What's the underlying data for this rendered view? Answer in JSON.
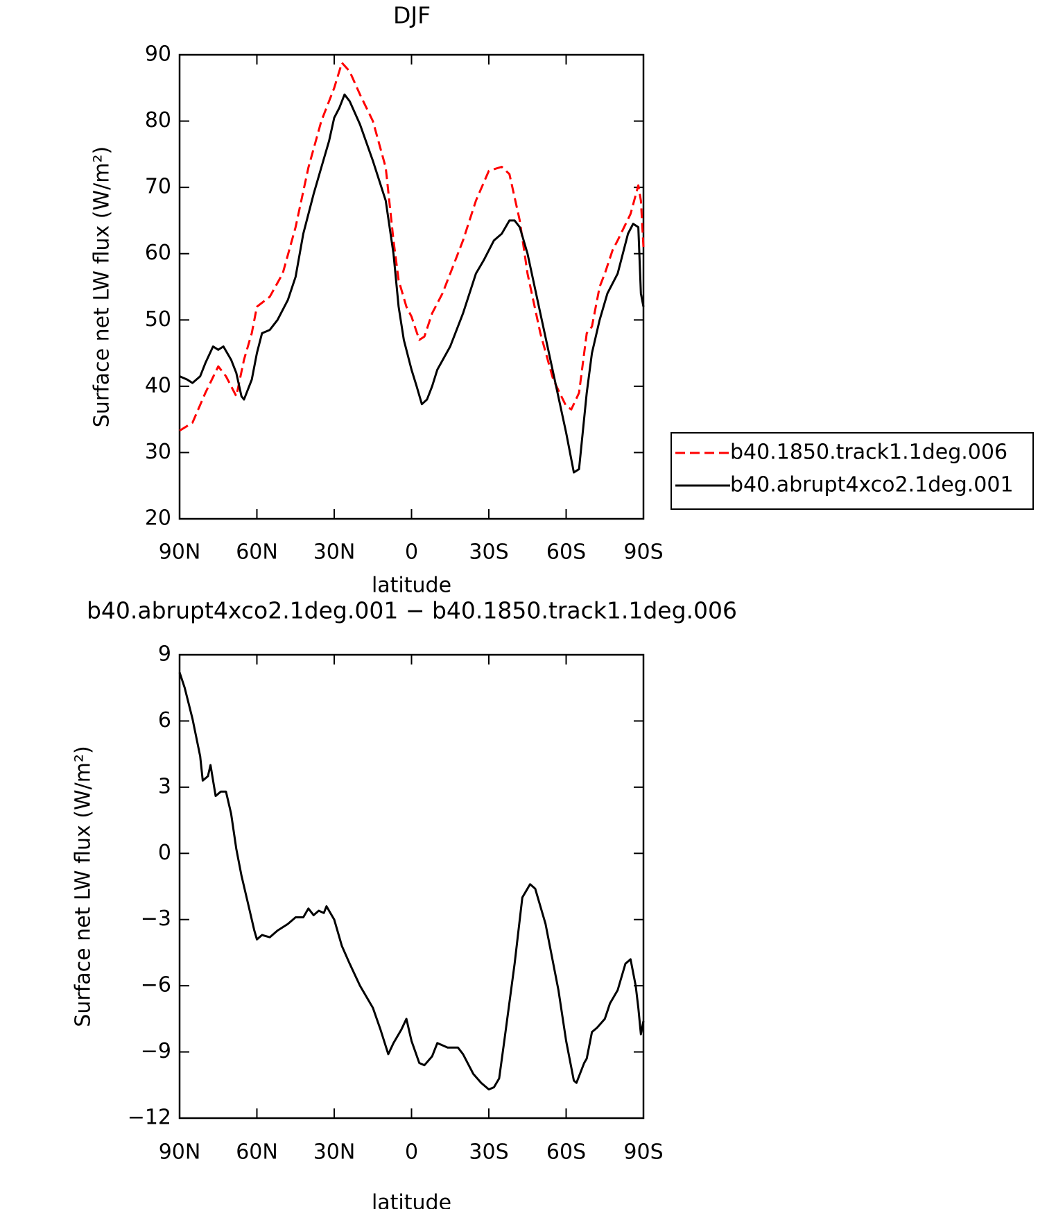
{
  "chart_data": [
    {
      "type": "line",
      "title": "DJF",
      "xlabel": "latitude",
      "ylabel": "Surface net LW flux (W/m²)",
      "xlim": [
        90,
        -90
      ],
      "ylim": [
        20,
        90
      ],
      "xticks": [
        {
          "value": 90,
          "label": "90N"
        },
        {
          "value": 60,
          "label": "60N"
        },
        {
          "value": 30,
          "label": "30N"
        },
        0,
        {
          "value": -30,
          "label": "30S"
        },
        {
          "value": -60,
          "label": "60S"
        },
        {
          "value": -90,
          "label": "90S"
        }
      ],
      "yticks": [
        20,
        30,
        40,
        50,
        60,
        70,
        80,
        90
      ],
      "legend": "right",
      "series": [
        {
          "name": "b40.1850.track1.1deg.006",
          "color": "#ff0000",
          "linestyle": "dashed",
          "x": [
            90,
            85,
            80,
            75,
            72,
            68,
            65,
            62,
            60,
            55,
            50,
            45,
            40,
            35,
            30,
            27,
            24,
            20,
            15,
            10,
            7,
            5,
            2,
            0,
            -3,
            -5,
            -8,
            -12,
            -15,
            -20,
            -25,
            -30,
            -35,
            -38,
            -42,
            -45,
            -50,
            -55,
            -60,
            -62,
            -65,
            -68,
            -70,
            -73,
            -75,
            -78,
            -80,
            -85,
            -88,
            -89,
            -90
          ],
          "values": [
            33.3,
            34.5,
            39,
            43,
            41.5,
            38.5,
            44,
            48,
            52,
            53.5,
            57,
            64,
            73,
            80,
            85,
            88.8,
            87.5,
            84,
            80,
            73,
            62,
            56,
            52,
            50.5,
            47,
            47.5,
            51,
            54,
            57,
            62,
            68,
            72.5,
            73.1,
            72,
            65,
            57,
            48,
            41,
            37,
            36.5,
            39,
            48,
            49,
            55,
            57,
            60.5,
            62,
            66,
            70.3,
            68,
            61
          ]
        },
        {
          "name": "b40.abrupt4xco2.1deg.001",
          "color": "#000000",
          "linestyle": "solid",
          "x": [
            90,
            87,
            85,
            82,
            80,
            77,
            75,
            73,
            70,
            68,
            66,
            65,
            62,
            60,
            58,
            55,
            52,
            48,
            45,
            42,
            38,
            35,
            32,
            30,
            28,
            26,
            24,
            20,
            15,
            10,
            7,
            5,
            3,
            0,
            -2,
            -4,
            -6,
            -8,
            -10,
            -15,
            -20,
            -25,
            -28,
            -32,
            -35,
            -38,
            -40,
            -42,
            -45,
            -50,
            -55,
            -60,
            -63,
            -65,
            -68,
            -70,
            -73,
            -76,
            -80,
            -84,
            -86,
            -88,
            -89,
            -90
          ],
          "values": [
            41.5,
            41,
            40.5,
            41.5,
            43.5,
            46,
            45.5,
            46,
            44,
            42,
            38.5,
            38,
            41,
            45,
            48,
            48.5,
            50,
            53,
            56.5,
            63,
            69,
            73,
            77,
            80.5,
            82,
            84,
            83,
            79.5,
            74,
            68,
            60,
            52,
            47,
            42.5,
            40,
            37.3,
            38,
            40,
            42.5,
            46,
            51,
            57,
            59,
            62,
            63,
            65,
            65,
            64,
            60,
            51,
            42,
            33,
            27,
            27.5,
            39,
            45,
            50,
            54,
            57,
            63,
            64.5,
            64,
            54,
            52
          ]
        }
      ]
    },
    {
      "type": "line",
      "title": "b40.abrupt4xco2.1deg.001 − b40.1850.track1.1deg.006",
      "xlabel": "latitude",
      "ylabel": "Surface net LW flux (W/m²)",
      "xlim": [
        90,
        -90
      ],
      "ylim": [
        -12,
        9
      ],
      "xticks": [
        {
          "value": 90,
          "label": "90N"
        },
        {
          "value": 60,
          "label": "60N"
        },
        {
          "value": 30,
          "label": "30N"
        },
        0,
        {
          "value": -30,
          "label": "30S"
        },
        {
          "value": -60,
          "label": "60S"
        },
        {
          "value": -90,
          "label": "90S"
        }
      ],
      "yticks": [
        {
          "value": -12,
          "label": "−12"
        },
        {
          "value": -9,
          "label": "−9"
        },
        {
          "value": -6,
          "label": "−6"
        },
        {
          "value": -3,
          "label": "−3"
        },
        0,
        3,
        6,
        9
      ],
      "series": [
        {
          "color": "#000000",
          "linestyle": "solid",
          "x": [
            90,
            88,
            85,
            82,
            81,
            79,
            78,
            76,
            74,
            72,
            70,
            68,
            66,
            63,
            61,
            60,
            58,
            55,
            52,
            48,
            45,
            42,
            40,
            38,
            36,
            34,
            33,
            30,
            27,
            24,
            20,
            15,
            12,
            9,
            7,
            4,
            2,
            0,
            -3,
            -5,
            -8,
            -10,
            -14,
            -18,
            -20,
            -24,
            -27,
            -30,
            -32,
            -34,
            -36,
            -40,
            -43,
            -46,
            -48,
            -52,
            -57,
            -60,
            -63,
            -64,
            -67,
            -68,
            -70,
            -72,
            -75,
            -77,
            -80,
            -83,
            -85,
            -87,
            -88,
            -89,
            -90
          ],
          "values": [
            8.2,
            7.5,
            6.1,
            4.4,
            3.3,
            3.5,
            4.0,
            2.6,
            2.8,
            2.8,
            1.8,
            0.2,
            -1.0,
            -2.5,
            -3.5,
            -3.9,
            -3.7,
            -3.8,
            -3.5,
            -3.2,
            -2.9,
            -2.9,
            -2.5,
            -2.8,
            -2.6,
            -2.7,
            -2.4,
            -3.0,
            -4.2,
            -5.0,
            -6.0,
            -7.0,
            -8.0,
            -9.1,
            -8.6,
            -8.0,
            -7.5,
            -8.5,
            -9.5,
            -9.6,
            -9.2,
            -8.6,
            -8.8,
            -8.8,
            -9.1,
            -10.0,
            -10.4,
            -10.7,
            -10.6,
            -10.2,
            -8.5,
            -5.0,
            -2.0,
            -1.4,
            -1.6,
            -3.2,
            -6.2,
            -8.5,
            -10.3,
            -10.4,
            -9.5,
            -9.3,
            -8.1,
            -7.9,
            -7.5,
            -6.8,
            -6.2,
            -5.0,
            -4.8,
            -6.0,
            -7.0,
            -8.2,
            -7.6
          ]
        }
      ]
    }
  ]
}
